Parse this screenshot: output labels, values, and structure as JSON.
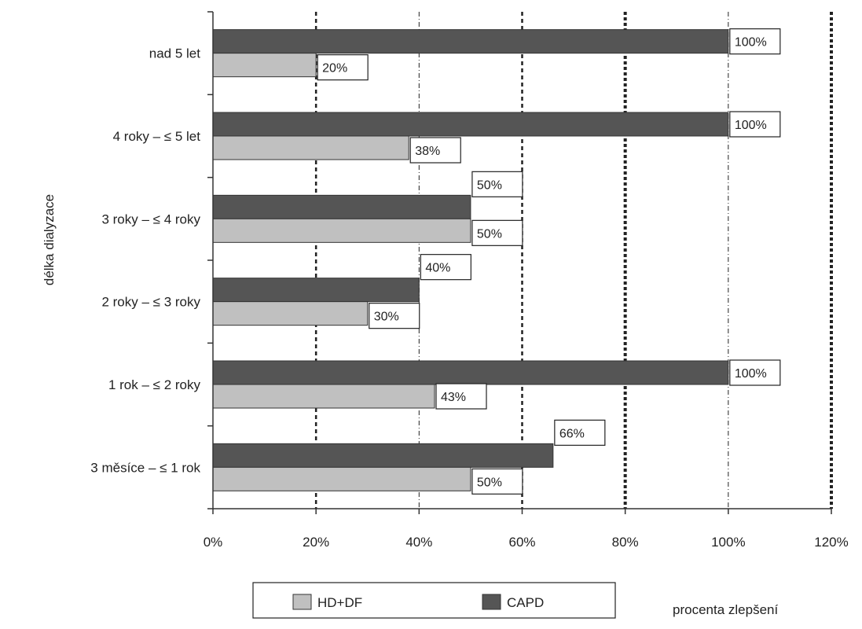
{
  "chart_data": {
    "type": "bar",
    "orientation": "horizontal",
    "categories": [
      "nad 5 let",
      "4 roky – ≤ 5 let",
      "3 roky – ≤ 4 roky",
      "2 roky – ≤ 3 roky",
      "1 rok – ≤ 2 roky",
      "3 měsíce – ≤ 1 rok"
    ],
    "series": [
      {
        "name": "CAPD",
        "color": "#555555",
        "values": [
          100,
          100,
          50,
          40,
          100,
          66
        ],
        "labels": [
          "100%",
          "100%",
          "50%",
          "40%",
          "100%",
          "66%"
        ]
      },
      {
        "name": "HD+DF",
        "color": "#c0c0c0",
        "values": [
          20,
          38,
          50,
          30,
          43,
          50
        ],
        "labels": [
          "20%",
          "38%",
          "50%",
          "30%",
          "43%",
          "50%"
        ]
      }
    ],
    "xlim": [
      0,
      120
    ],
    "xticks": [
      0,
      20,
      40,
      60,
      80,
      100,
      120
    ],
    "xtick_labels": [
      "0%",
      "20%",
      "40%",
      "60%",
      "80%",
      "100%",
      "120%"
    ],
    "xlabel": "procenta zlepšení",
    "ylabel": "délka dialyzace",
    "title": "",
    "grid": true,
    "legend": {
      "position": "bottom",
      "items": [
        {
          "name": "HD+DF",
          "color": "#c0c0c0"
        },
        {
          "name": "CAPD",
          "color": "#555555"
        }
      ]
    }
  }
}
